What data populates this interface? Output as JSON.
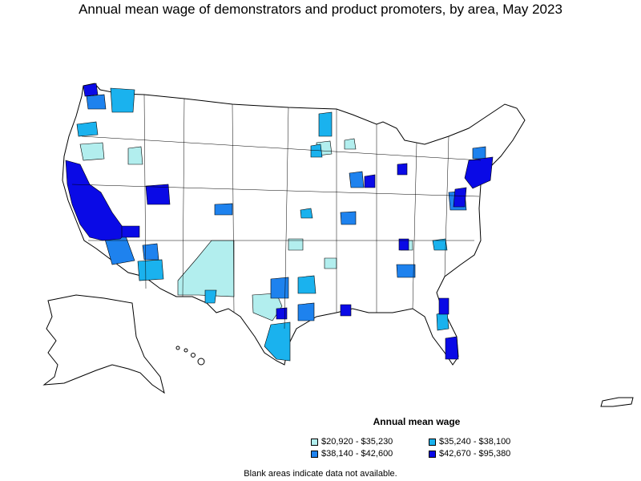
{
  "title": "Annual mean wage of demonstrators and product promoters, by area, May 2023",
  "legend": {
    "title": "Annual mean wage",
    "items": [
      {
        "label": "$20,920 - $35,230",
        "color": "#b2eeee"
      },
      {
        "label": "$35,240 - $38,100",
        "color": "#1ab2ee"
      },
      {
        "label": "$38,140 - $42,600",
        "color": "#1e82ee"
      },
      {
        "label": "$42,670 - $95,380",
        "color": "#0a0ae6"
      }
    ]
  },
  "note": "Blank areas indicate data not available.",
  "colors": {
    "border": "#000000",
    "blank": "#ffffff"
  }
}
